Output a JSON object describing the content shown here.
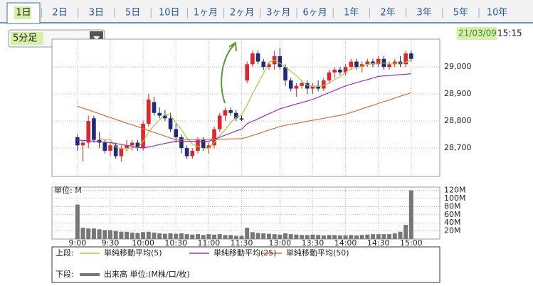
{
  "tabs": [
    "1日",
    "2日",
    "3日",
    "5日",
    "10日",
    "1ヶ月",
    "2ヶ月",
    "3ヶ月",
    "6ヶ月",
    "1年",
    "2年",
    "3年",
    "5年",
    "10年"
  ],
  "interval": "5分足",
  "date": "21/03/09",
  "time": "15:15",
  "legend_upper": "上段:",
  "legend_lower": "下段:",
  "chart_data": [
    {
      "type": "candlestick",
      "up_color": "#e0262a",
      "down_color": "#1f2a7a",
      "open": [
        28740,
        28710,
        28720,
        28810,
        28730,
        28720,
        28690,
        28710,
        28670,
        28700,
        28710,
        28720,
        28700,
        28790,
        28870,
        28830,
        28820,
        28810,
        28770,
        28740,
        28700,
        28670,
        28690,
        28730,
        28700,
        28710,
        28770,
        28820,
        28840,
        28830,
        28810,
        28950,
        29010,
        29050,
        29020,
        29000,
        29010,
        29040,
        29000,
        28950,
        28920,
        28930,
        28940,
        28920,
        28930,
        28920,
        28950,
        28980,
        28990,
        28980,
        29000,
        29020,
        29000,
        29010,
        29020,
        29010,
        29030,
        29000,
        29010,
        29020,
        29010,
        29050
      ],
      "high": [
        28750,
        28730,
        28820,
        28820,
        28760,
        28730,
        28720,
        28720,
        28710,
        28730,
        28730,
        28730,
        28800,
        28900,
        28890,
        28850,
        28840,
        28830,
        28790,
        28750,
        28710,
        28700,
        28740,
        28740,
        28720,
        28780,
        28830,
        28850,
        28850,
        28840,
        28820,
        29020,
        29060,
        29060,
        29030,
        29020,
        29060,
        29070,
        29010,
        28960,
        28940,
        28950,
        28950,
        28940,
        28950,
        28960,
        28990,
        29000,
        29000,
        29010,
        29030,
        29030,
        29020,
        29030,
        29030,
        29040,
        29040,
        29020,
        29030,
        29040,
        29060,
        29060
      ],
      "low": [
        28690,
        28650,
        28700,
        28720,
        28700,
        28680,
        28670,
        28660,
        28650,
        28690,
        28690,
        28690,
        28690,
        28780,
        28820,
        28810,
        28800,
        28760,
        28720,
        28680,
        28660,
        28660,
        28680,
        28690,
        28680,
        28700,
        28760,
        28800,
        28820,
        28800,
        28800,
        28940,
        29000,
        29010,
        28990,
        28990,
        28990,
        28990,
        28930,
        28910,
        28890,
        28920,
        28900,
        28900,
        28910,
        28910,
        28940,
        28960,
        28970,
        28970,
        28990,
        28990,
        28980,
        29000,
        29000,
        29000,
        28990,
        28990,
        29000,
        29000,
        29000,
        29020
      ],
      "close": [
        28710,
        28720,
        28800,
        28730,
        28720,
        28690,
        28710,
        28670,
        28700,
        28710,
        28720,
        28700,
        28790,
        28880,
        28830,
        28820,
        28810,
        28770,
        28740,
        28700,
        28670,
        28690,
        28730,
        28700,
        28710,
        28770,
        28820,
        28840,
        28830,
        28810,
        28805,
        29010,
        29050,
        29020,
        29000,
        29010,
        29040,
        29000,
        28950,
        28920,
        28930,
        28940,
        28920,
        28930,
        28920,
        28950,
        28980,
        28990,
        28980,
        29000,
        29020,
        29000,
        29010,
        29020,
        29010,
        29030,
        29000,
        29010,
        29020,
        29010,
        29050,
        29030
      ],
      "series": [
        {
          "name": "単純移動平均(5)",
          "color": "#a8c83a",
          "values": [
            null,
            null,
            null,
            null,
            28736,
            28732,
            28730,
            28704,
            28698,
            28696,
            28702,
            28700,
            28724,
            28760,
            28784,
            28804,
            28826,
            28822,
            28794,
            28768,
            28738,
            28714,
            28706,
            28698,
            28700,
            28720,
            28746,
            28768,
            28794,
            28814,
            28821,
            28859,
            28901,
            28939,
            28977,
            29018,
            29024,
            29014,
            29000,
            28984,
            28968,
            28948,
            28932,
            28928,
            28928,
            28932,
            28940,
            28954,
            28964,
            28980,
            28994,
            28998,
            29002,
            29010,
            29012,
            29014,
            29014,
            29014,
            29014,
            29014,
            29018,
            29024
          ]
        },
        {
          "name": "単純移動平均(25)",
          "color": "#9b2fc8",
          "values": [
            28730,
            28728,
            28727,
            28725,
            28723,
            28722,
            28720,
            28717,
            28713,
            28710,
            28707,
            28703,
            28700,
            28704,
            28708,
            28713,
            28717,
            28721,
            28725,
            28725,
            28725,
            28725,
            28725,
            28725,
            28725,
            28733,
            28740,
            28748,
            28755,
            28763,
            28770,
            28790,
            28799,
            28808,
            28818,
            28827,
            28836,
            28845,
            28851,
            28857,
            28863,
            28868,
            28874,
            28880,
            28888,
            28897,
            28905,
            28913,
            28922,
            28930,
            28936,
            28942,
            28948,
            28953,
            28959,
            28965,
            28967,
            28968,
            28970,
            28972,
            28973,
            28975
          ]
        },
        {
          "name": "単純移動平均(50)",
          "color": "#e06a3a",
          "values": [
            28855,
            28848,
            28841,
            28834,
            28827,
            28820,
            28813,
            28806,
            28799,
            28792,
            28786,
            28779,
            28772,
            28765,
            28758,
            28751,
            28744,
            28737,
            28730,
            28730,
            28731,
            28731,
            28731,
            28732,
            28732,
            28733,
            28733,
            28733,
            28734,
            28734,
            28735,
            28740,
            28747,
            28753,
            28760,
            28767,
            28773,
            28780,
            28784,
            28788,
            28791,
            28795,
            28799,
            28803,
            28806,
            28810,
            28814,
            28818,
            28821,
            28825,
            28832,
            28838,
            28845,
            28852,
            28858,
            28865,
            28872,
            28878,
            28885,
            28892,
            28898,
            28905
          ]
        }
      ],
      "ylim": [
        28595,
        29103
      ],
      "yticks": [
        {
          "value": 28700,
          "label": "28,700"
        },
        {
          "value": 28800,
          "label": "28,800"
        },
        {
          "value": 28900,
          "label": "28,900"
        },
        {
          "value": 29000,
          "label": "29,000"
        }
      ],
      "grid": true
    },
    {
      "type": "bar",
      "unit_label": "単位: M",
      "categories": [
        "9:00",
        null,
        null,
        null,
        null,
        null,
        "9:30",
        null,
        null,
        null,
        null,
        null,
        "10:00",
        null,
        null,
        null,
        null,
        null,
        "10:30",
        null,
        null,
        null,
        null,
        null,
        "11:00",
        null,
        null,
        null,
        null,
        null,
        "11:30",
        null,
        null,
        null,
        null,
        null,
        null,
        "13:00",
        null,
        null,
        null,
        null,
        null,
        "13:30",
        null,
        null,
        null,
        null,
        null,
        "14:00",
        null,
        null,
        null,
        null,
        null,
        "14:30",
        null,
        null,
        null,
        null,
        null,
        "15:00"
      ],
      "series": [
        {
          "name": "出来高 単位:(M株/口/枚)",
          "color": "#777777",
          "values": [
            85,
            28,
            26,
            26,
            24,
            22,
            22,
            20,
            18,
            18,
            16,
            15,
            17,
            18,
            16,
            14,
            13,
            14,
            13,
            14,
            12,
            11,
            12,
            10,
            12,
            11,
            12,
            10,
            10,
            8,
            8,
            28,
            17,
            15,
            14,
            13,
            12,
            11,
            14,
            12,
            11,
            10,
            10,
            11,
            10,
            9,
            10,
            10,
            9,
            9,
            10,
            9,
            10,
            11,
            12,
            12,
            12,
            12,
            14,
            18,
            35,
            120
          ]
        }
      ],
      "ylim": [
        0,
        128
      ],
      "yticks": [
        {
          "value": 20,
          "label": "20M"
        },
        {
          "value": 40,
          "label": "40M"
        },
        {
          "value": 60,
          "label": "60M"
        },
        {
          "value": 80,
          "label": "80M"
        },
        {
          "value": 100,
          "label": "100M"
        },
        {
          "value": 120,
          "label": "120M"
        }
      ],
      "grid": true
    }
  ]
}
